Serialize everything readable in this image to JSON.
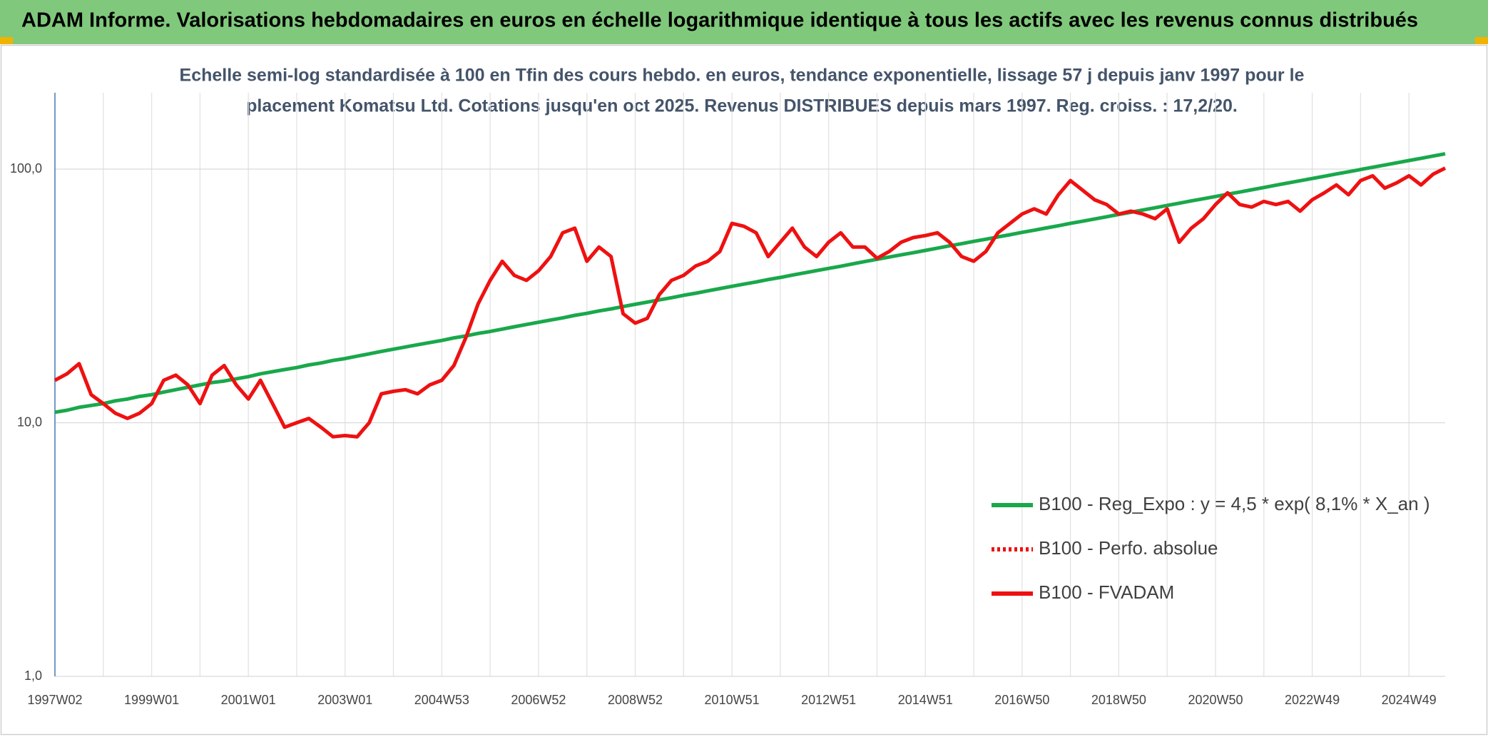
{
  "chart_data": {
    "type": "line",
    "title": "ADAM Informe. Valorisations hebdomadaires en euros en échelle logarithmique identique à tous les actifs avec les revenus connus distribués",
    "subtitle": [
      "Echelle semi-log standardisée à 100 en Tfin des cours hebdo. en euros, tendance exponentielle, lissage 57 j depuis janv 1997 pour le",
      "placement Komatsu Ltd. Cotations jusqu'en oct 2025. Revenus DISTRIBUES depuis mars 1997. Reg. croiss. : 17,2/20."
    ],
    "log_scale": true,
    "legend": "right",
    "ylim": [
      1,
      200
    ],
    "yticks": [
      {
        "value": 1,
        "label": "1,0"
      },
      {
        "value": 10,
        "label": "10,0"
      },
      {
        "value": 100,
        "label": "100,0"
      }
    ],
    "categories": [
      "1997W02",
      null,
      null,
      null,
      null,
      null,
      null,
      null,
      "1999W01",
      null,
      null,
      null,
      null,
      null,
      null,
      null,
      "2001W01",
      null,
      null,
      null,
      null,
      null,
      null,
      null,
      "2003W01",
      null,
      null,
      null,
      null,
      null,
      null,
      null,
      "2004W53",
      null,
      null,
      null,
      null,
      null,
      null,
      null,
      "2006W52",
      null,
      null,
      null,
      null,
      null,
      null,
      null,
      "2008W52",
      null,
      null,
      null,
      null,
      null,
      null,
      null,
      "2010W51",
      null,
      null,
      null,
      null,
      null,
      null,
      null,
      "2012W51",
      null,
      null,
      null,
      null,
      null,
      null,
      null,
      "2014W51",
      null,
      null,
      null,
      null,
      null,
      null,
      null,
      "2016W50",
      null,
      null,
      null,
      null,
      null,
      null,
      null,
      "2018W50",
      null,
      null,
      null,
      null,
      null,
      null,
      null,
      "2020W50",
      null,
      null,
      null,
      null,
      null,
      null,
      null,
      "2022W49",
      null,
      null,
      null,
      null,
      null,
      null,
      null,
      "2024W49",
      null,
      null,
      null
    ],
    "series": [
      {
        "name": "B100 - Reg_Expo : y = 4,5 * exp( 8,1% *  X_an )",
        "color": "#19a84b",
        "style": "solid",
        "values": [
          11.0,
          11.2,
          11.5,
          11.7,
          11.9,
          12.2,
          12.4,
          12.7,
          12.9,
          13.2,
          13.5,
          13.8,
          14.1,
          14.4,
          14.6,
          14.9,
          15.2,
          15.6,
          15.9,
          16.2,
          16.5,
          16.9,
          17.2,
          17.6,
          17.9,
          18.3,
          18.7,
          19.1,
          19.5,
          19.9,
          20.3,
          20.7,
          21.1,
          21.6,
          22.0,
          22.5,
          22.9,
          23.4,
          23.9,
          24.4,
          24.9,
          25.4,
          25.9,
          26.5,
          27.0,
          27.6,
          28.1,
          28.7,
          29.3,
          29.9,
          30.5,
          31.1,
          31.8,
          32.4,
          33.1,
          33.8,
          34.5,
          35.2,
          35.9,
          36.7,
          37.4,
          38.2,
          39.0,
          39.8,
          40.6,
          41.4,
          42.3,
          43.2,
          44.1,
          45.0,
          45.9,
          46.8,
          47.8,
          48.8,
          49.8,
          50.8,
          51.9,
          52.9,
          54.0,
          55.1,
          56.3,
          57.4,
          58.6,
          59.8,
          61.1,
          62.3,
          63.6,
          64.9,
          66.3,
          67.6,
          69.0,
          70.4,
          71.9,
          73.4,
          74.9,
          76.4,
          78.0,
          79.6,
          81.2,
          82.9,
          84.6,
          86.4,
          88.2,
          90.0,
          91.8,
          93.7,
          95.7,
          97.6,
          99.6,
          101.7,
          103.8,
          105.9,
          108.1,
          110.3,
          112.6,
          114.9
        ]
      },
      {
        "name": "B100 - Perfo. absolue",
        "color": "#ee1111",
        "style": "dotted",
        "values": [
          14.7,
          15.6,
          17.1,
          12.9,
          11.9,
          10.9,
          10.4,
          10.9,
          11.9,
          14.7,
          15.4,
          14.1,
          11.9,
          15.4,
          16.8,
          14.1,
          12.4,
          14.7,
          11.9,
          9.6,
          10.0,
          10.4,
          9.6,
          8.8,
          8.9,
          8.8,
          10.0,
          13.0,
          13.3,
          13.5,
          13.0,
          14.1,
          14.7,
          16.8,
          21.7,
          29.4,
          36.4,
          43.3,
          38.1,
          36.4,
          39.7,
          45.2,
          56.1,
          58.5,
          43.3,
          49.3,
          45.2,
          26.9,
          24.7,
          25.8,
          32.0,
          36.4,
          38.1,
          41.5,
          43.3,
          47.3,
          61.1,
          59.5,
          56.1,
          45.2,
          51.5,
          58.5,
          49.3,
          45.2,
          51.5,
          56.1,
          49.3,
          49.3,
          44.5,
          47.3,
          51.5,
          53.7,
          54.7,
          56.1,
          51.5,
          45.2,
          43.3,
          47.3,
          56.1,
          61.1,
          66.5,
          69.7,
          66.5,
          79.2,
          90.1,
          82.6,
          75.7,
          72.5,
          66.5,
          68.3,
          66.5,
          63.7,
          69.7,
          51.5,
          58.5,
          63.7,
          72.5,
          80.6,
          72.5,
          70.8,
          74.6,
          72.5,
          74.6,
          68.3,
          75.7,
          80.6,
          86.6,
          79.2,
          90.1,
          94.1,
          84.1,
          88.3,
          94.1,
          86.6,
          95.5,
          100.9
        ]
      },
      {
        "name": "B100 - FVADAM",
        "color": "#ee1111",
        "style": "solid",
        "values": [
          14.7,
          15.6,
          17.1,
          12.9,
          11.9,
          10.9,
          10.4,
          10.9,
          11.9,
          14.7,
          15.4,
          14.1,
          11.9,
          15.4,
          16.8,
          14.1,
          12.4,
          14.7,
          11.9,
          9.6,
          10.0,
          10.4,
          9.6,
          8.8,
          8.9,
          8.8,
          10.0,
          13.0,
          13.3,
          13.5,
          13.0,
          14.1,
          14.7,
          16.8,
          21.7,
          29.4,
          36.4,
          43.3,
          38.1,
          36.4,
          39.7,
          45.2,
          56.1,
          58.5,
          43.3,
          49.3,
          45.2,
          26.9,
          24.7,
          25.8,
          32.0,
          36.4,
          38.1,
          41.5,
          43.3,
          47.3,
          61.1,
          59.5,
          56.1,
          45.2,
          51.5,
          58.5,
          49.3,
          45.2,
          51.5,
          56.1,
          49.3,
          49.3,
          44.5,
          47.3,
          51.5,
          53.7,
          54.7,
          56.1,
          51.5,
          45.2,
          43.3,
          47.3,
          56.1,
          61.1,
          66.5,
          69.7,
          66.5,
          79.2,
          90.1,
          82.6,
          75.7,
          72.5,
          66.5,
          68.3,
          66.5,
          63.7,
          69.7,
          51.5,
          58.5,
          63.7,
          72.5,
          80.6,
          72.5,
          70.8,
          74.6,
          72.5,
          74.6,
          68.3,
          75.7,
          80.6,
          86.6,
          79.2,
          90.1,
          94.1,
          84.1,
          88.3,
          94.1,
          86.6,
          95.5,
          100.9
        ]
      }
    ]
  }
}
